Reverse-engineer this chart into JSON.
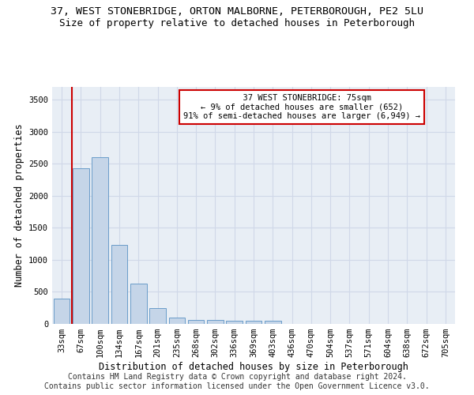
{
  "title1": "37, WEST STONEBRIDGE, ORTON MALBORNE, PETERBOROUGH, PE2 5LU",
  "title2": "Size of property relative to detached houses in Peterborough",
  "xlabel": "Distribution of detached houses by size in Peterborough",
  "ylabel": "Number of detached properties",
  "categories": [
    "33sqm",
    "67sqm",
    "100sqm",
    "134sqm",
    "167sqm",
    "201sqm",
    "235sqm",
    "268sqm",
    "302sqm",
    "336sqm",
    "369sqm",
    "403sqm",
    "436sqm",
    "470sqm",
    "504sqm",
    "537sqm",
    "571sqm",
    "604sqm",
    "638sqm",
    "672sqm",
    "705sqm"
  ],
  "values": [
    400,
    2430,
    2600,
    1230,
    630,
    250,
    100,
    65,
    60,
    55,
    50,
    55,
    0,
    0,
    0,
    0,
    0,
    0,
    0,
    0,
    0
  ],
  "bar_color": "#c5d5e8",
  "bar_edge_color": "#6a9cc9",
  "grid_color": "#d0d8e8",
  "bg_color": "#e8eef5",
  "vline_color": "#cc0000",
  "vline_x": 0.575,
  "annotation_text": "  37 WEST STONEBRIDGE: 75sqm\n← 9% of detached houses are smaller (652)\n91% of semi-detached houses are larger (6,949) →",
  "annotation_box_color": "#ffffff",
  "annotation_box_edge": "#cc0000",
  "footer1": "Contains HM Land Registry data © Crown copyright and database right 2024.",
  "footer2": "Contains public sector information licensed under the Open Government Licence v3.0.",
  "ylim": [
    0,
    3700
  ],
  "yticks": [
    0,
    500,
    1000,
    1500,
    2000,
    2500,
    3000,
    3500
  ],
  "title1_fontsize": 9.5,
  "title2_fontsize": 9,
  "axis_fontsize": 8.5,
  "tick_fontsize": 7.5,
  "footer_fontsize": 7
}
